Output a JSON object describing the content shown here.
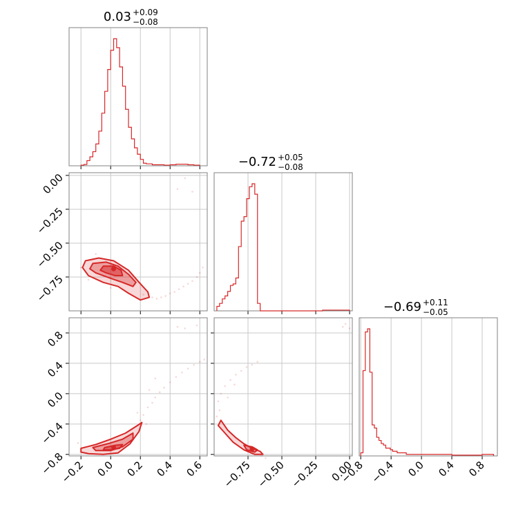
{
  "figure": {
    "color": "#d62728"
  },
  "chart_data": {
    "type": "corner",
    "params": [
      {
        "title": {
          "main": "0.03",
          "sup": "+0.09",
          "sub": "−0.08"
        },
        "range": [
          -0.28,
          0.65
        ],
        "ticks": [
          -0.2,
          0.0,
          0.2,
          0.4,
          0.6
        ],
        "tick_labels": [
          "−0.2",
          "0.0",
          "0.2",
          "0.4",
          "0.6"
        ]
      },
      {
        "title": {
          "main": "−0.72",
          "sup": "+0.05",
          "sub": "−0.08"
        },
        "range": [
          -1.0,
          0.02
        ],
        "ticks": [
          -0.75,
          -0.5,
          -0.25,
          0.0
        ],
        "tick_labels": [
          "−0.75",
          "−0.50",
          "−0.25",
          "0.00"
        ]
      },
      {
        "title": {
          "main": "−0.69",
          "sup": "+0.11",
          "sub": "−0.05"
        },
        "range": [
          -0.82,
          1.0
        ],
        "ticks": [
          -0.8,
          -0.4,
          0.0,
          0.4,
          0.8
        ],
        "tick_labels": [
          "−0.8",
          "−0.4",
          "0.0",
          "0.4",
          "0.8"
        ]
      }
    ],
    "histograms": [
      {
        "param": 0,
        "bins": [
          -0.2,
          -0.18,
          -0.16,
          -0.14,
          -0.12,
          -0.1,
          -0.08,
          -0.06,
          -0.04,
          -0.02,
          0.0,
          0.02,
          0.04,
          0.06,
          0.08,
          0.1,
          0.12,
          0.14,
          0.16,
          0.18,
          0.2,
          0.22,
          0.24,
          0.28,
          0.32,
          0.36,
          0.4,
          0.44,
          0.48,
          0.52,
          0.56,
          0.6
        ],
        "counts": [
          0.5,
          1,
          4,
          7,
          11,
          17,
          27,
          41,
          58,
          75,
          90,
          99,
          92,
          77,
          62,
          44,
          30,
          21,
          14,
          9,
          5,
          2,
          1.5,
          0.8,
          0.8,
          0.5,
          0.8,
          1.2,
          1.2,
          0.8,
          0.5
        ]
      },
      {
        "param": 1,
        "bins": [
          -0.98,
          -0.96,
          -0.94,
          -0.92,
          -0.9,
          -0.88,
          -0.86,
          -0.84,
          -0.82,
          -0.8,
          -0.78,
          -0.76,
          -0.74,
          -0.72,
          -0.7,
          -0.68,
          -0.66,
          -0.64,
          -0.62,
          -0.6,
          -0.56,
          -0.5,
          -0.4,
          -0.3,
          -0.2,
          -0.1,
          0.0
        ],
        "counts": [
          3,
          5,
          8,
          10,
          13,
          17,
          18,
          22,
          43,
          60,
          63,
          75,
          83,
          85,
          78,
          5,
          0,
          0,
          0,
          0,
          0,
          0,
          0,
          0,
          0.5,
          0.5
        ]
      },
      {
        "param": 2,
        "bins": [
          -0.8,
          -0.77,
          -0.74,
          -0.71,
          -0.68,
          -0.65,
          -0.62,
          -0.59,
          -0.56,
          -0.53,
          -0.5,
          -0.47,
          -0.44,
          -0.41,
          -0.38,
          -0.35,
          -0.32,
          -0.29,
          -0.26,
          -0.2,
          -0.1,
          0.0,
          0.2,
          0.4,
          0.6,
          0.8,
          0.95
        ],
        "counts": [
          2,
          55,
          80,
          82,
          54,
          20,
          18,
          12,
          10,
          8,
          7,
          5,
          5,
          4,
          3,
          3,
          2,
          2,
          2,
          1,
          1,
          1,
          1,
          0.5,
          0.5,
          1
        ]
      }
    ],
    "panels_2d": [
      {
        "x_param": 0,
        "y_param": 1,
        "contours": [
          [
            [
              -0.17,
              -0.63
            ],
            [
              -0.08,
              -0.61
            ],
            [
              0.02,
              -0.63
            ],
            [
              0.12,
              -0.7
            ],
            [
              0.2,
              -0.8
            ],
            [
              0.25,
              -0.86
            ],
            [
              0.26,
              -0.9
            ],
            [
              0.2,
              -0.92
            ],
            [
              0.12,
              -0.87
            ],
            [
              0.05,
              -0.82
            ],
            [
              -0.05,
              -0.79
            ],
            [
              -0.15,
              -0.74
            ],
            [
              -0.19,
              -0.68
            ]
          ],
          [
            [
              -0.12,
              -0.65
            ],
            [
              -0.03,
              -0.64
            ],
            [
              0.05,
              -0.67
            ],
            [
              0.12,
              -0.73
            ],
            [
              0.17,
              -0.79
            ],
            [
              0.15,
              -0.82
            ],
            [
              0.08,
              -0.79
            ],
            [
              0.0,
              -0.76
            ],
            [
              -0.1,
              -0.72
            ],
            [
              -0.14,
              -0.69
            ]
          ],
          [
            [
              -0.05,
              -0.67
            ],
            [
              0.02,
              -0.67
            ],
            [
              0.07,
              -0.7
            ],
            [
              0.08,
              -0.74
            ],
            [
              0.03,
              -0.74
            ],
            [
              -0.03,
              -0.72
            ],
            [
              -0.07,
              -0.7
            ]
          ]
        ],
        "peak": [
          0.02,
          -0.69
        ],
        "scatter": [
          [
            0.25,
            -0.86
          ],
          [
            0.28,
            -0.9
          ],
          [
            0.31,
            -0.91
          ],
          [
            0.34,
            -0.9
          ],
          [
            0.37,
            -0.89
          ],
          [
            0.4,
            -0.87
          ],
          [
            0.43,
            -0.86
          ],
          [
            0.46,
            -0.84
          ],
          [
            0.49,
            -0.82
          ],
          [
            0.52,
            -0.8
          ],
          [
            0.55,
            -0.78
          ],
          [
            0.58,
            -0.75
          ],
          [
            0.6,
            -0.72
          ],
          [
            0.62,
            -0.68
          ],
          [
            0.5,
            -0.02
          ],
          [
            0.45,
            -0.1
          ],
          [
            0.55,
            -0.12
          ],
          [
            -0.2,
            -0.68
          ],
          [
            0.0,
            -0.83
          ],
          [
            -0.15,
            -0.77
          ],
          [
            0.22,
            -0.88
          ],
          [
            -0.1,
            -0.58
          ]
        ]
      },
      {
        "x_param": 0,
        "y_param": 2,
        "contours": [
          [
            [
              -0.2,
              -0.72
            ],
            [
              -0.1,
              -0.67
            ],
            [
              0.0,
              -0.6
            ],
            [
              0.1,
              -0.52
            ],
            [
              0.18,
              -0.42
            ],
            [
              0.21,
              -0.38
            ],
            [
              0.19,
              -0.5
            ],
            [
              0.13,
              -0.66
            ],
            [
              0.05,
              -0.78
            ],
            [
              -0.05,
              -0.8
            ],
            [
              -0.15,
              -0.79
            ],
            [
              -0.2,
              -0.77
            ]
          ],
          [
            [
              -0.12,
              -0.71
            ],
            [
              -0.02,
              -0.66
            ],
            [
              0.08,
              -0.6
            ],
            [
              0.15,
              -0.52
            ],
            [
              0.15,
              -0.6
            ],
            [
              0.08,
              -0.7
            ],
            [
              0.0,
              -0.75
            ],
            [
              -0.1,
              -0.75
            ]
          ],
          [
            [
              -0.04,
              -0.71
            ],
            [
              0.03,
              -0.68
            ],
            [
              0.08,
              -0.67
            ],
            [
              0.06,
              -0.72
            ],
            [
              0.0,
              -0.74
            ],
            [
              -0.05,
              -0.74
            ]
          ]
        ],
        "peak": [
          0.02,
          -0.71
        ],
        "scatter": [
          [
            0.2,
            -0.35
          ],
          [
            0.22,
            -0.28
          ],
          [
            0.25,
            -0.18
          ],
          [
            0.28,
            -0.12
          ],
          [
            0.3,
            -0.05
          ],
          [
            0.33,
            0.02
          ],
          [
            0.36,
            0.08
          ],
          [
            0.4,
            0.15
          ],
          [
            0.44,
            0.22
          ],
          [
            0.48,
            0.28
          ],
          [
            0.52,
            0.33
          ],
          [
            0.56,
            0.38
          ],
          [
            0.6,
            0.42
          ],
          [
            0.63,
            0.45
          ],
          [
            0.45,
            0.88
          ],
          [
            0.5,
            0.86
          ],
          [
            0.58,
            0.9
          ],
          [
            0.18,
            -0.25
          ],
          [
            -0.22,
            -0.65
          ],
          [
            0.24,
            -0.4
          ],
          [
            0.3,
            0.2
          ],
          [
            0.26,
            0.05
          ]
        ]
      },
      {
        "x_param": 1,
        "y_param": 2,
        "contours": [
          [
            [
              -0.95,
              -0.35
            ],
            [
              -0.9,
              -0.48
            ],
            [
              -0.84,
              -0.58
            ],
            [
              -0.78,
              -0.66
            ],
            [
              -0.72,
              -0.72
            ],
            [
              -0.66,
              -0.76
            ],
            [
              -0.64,
              -0.8
            ],
            [
              -0.7,
              -0.8
            ],
            [
              -0.78,
              -0.74
            ],
            [
              -0.86,
              -0.64
            ],
            [
              -0.92,
              -0.52
            ],
            [
              -0.97,
              -0.42
            ]
          ],
          [
            [
              -0.78,
              -0.68
            ],
            [
              -0.72,
              -0.7
            ],
            [
              -0.68,
              -0.74
            ],
            [
              -0.7,
              -0.77
            ],
            [
              -0.76,
              -0.74
            ]
          ]
        ],
        "peak": [
          -0.72,
          -0.73
        ],
        "scatter": [
          [
            -0.97,
            -0.1
          ],
          [
            -0.95,
            0.0
          ],
          [
            -0.92,
            0.1
          ],
          [
            -0.88,
            0.18
          ],
          [
            -0.84,
            0.25
          ],
          [
            -0.8,
            0.3
          ],
          [
            -0.76,
            0.35
          ],
          [
            -0.72,
            0.38
          ],
          [
            -0.68,
            0.42
          ],
          [
            -0.98,
            -0.3
          ],
          [
            -0.96,
            -0.22
          ],
          [
            -0.05,
            0.88
          ],
          [
            -0.03,
            0.92
          ],
          [
            0.0,
            0.86
          ],
          [
            -0.9,
            -0.05
          ],
          [
            -0.85,
            0.12
          ],
          [
            -0.65,
            -0.82
          ],
          [
            -0.62,
            -0.85
          ]
        ]
      }
    ]
  }
}
